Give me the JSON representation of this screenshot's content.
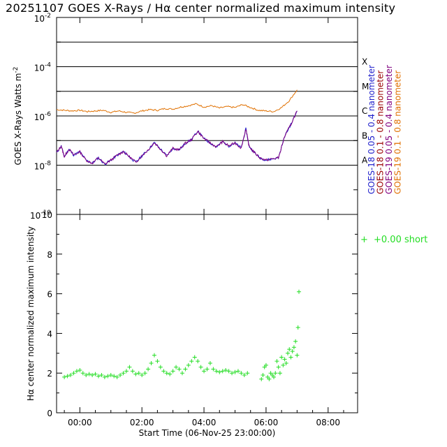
{
  "title": "20251107 GOES X-Rays / Hα center normalized maximum intensity",
  "colors": {
    "goes18_short": "#2222cc",
    "goes18_long": "#990000",
    "goes19_short": "#800080",
    "goes19_long": "#e07000",
    "halpha": "#22dd22"
  },
  "chart_data": [
    {
      "type": "line",
      "title": "GOES X-Rays",
      "ylabel": "GOES X-Rays Watts m",
      "ylabel_sup": "-2",
      "yscale": "log",
      "ylim": [
        1e-10,
        0.01
      ],
      "xlim_hours": [
        -0.75,
        8.95
      ],
      "y_ticks": [
        {
          "base": "10",
          "exp": "-2",
          "value": 0.01
        },
        {
          "base": "10",
          "exp": "-4",
          "value": 0.0001
        },
        {
          "base": "10",
          "exp": "-6",
          "value": 1e-06
        },
        {
          "base": "10",
          "exp": "-8",
          "value": 1e-08
        },
        {
          "base": "10",
          "exp": "-10",
          "value": 1e-10
        }
      ],
      "flare_class_lines": [
        1e-08,
        1e-07,
        1e-06,
        1e-05,
        0.0001,
        0.001
      ],
      "flare_classes": [
        {
          "label": "A",
          "value": 1.8e-08
        },
        {
          "label": "B",
          "value": 1.8e-07
        },
        {
          "label": "C",
          "value": 1.8e-06
        },
        {
          "label": "M",
          "value": 1.8e-05
        },
        {
          "label": "X",
          "value": 0.00018
        }
      ],
      "legend": [
        {
          "label": "GOES-18  0.05 - 0.4 nanometer",
          "color": "#2222cc"
        },
        {
          "label": "GOES-18  0.1 - 0.8 nanometer",
          "color": "#990000"
        },
        {
          "label": "GOES-19  0.05 - 0.4 nanometer",
          "color": "#800080"
        },
        {
          "label": "GOES-19  0.1 - 0.8 nanometer",
          "color": "#e07000"
        }
      ],
      "series": [
        {
          "name": "GOES-19 0.1 - 0.8 nanometer",
          "color": "#e07000",
          "x_hours": [
            -0.75,
            -0.5,
            -0.25,
            0,
            0.25,
            0.5,
            0.75,
            1.0,
            1.25,
            1.5,
            1.75,
            2.0,
            2.25,
            2.5,
            2.75,
            3.0,
            3.25,
            3.5,
            3.75,
            4.0,
            4.25,
            4.5,
            4.75,
            5.0,
            5.25,
            5.5,
            5.75,
            6.0,
            6.25,
            6.5,
            6.75,
            7.0
          ],
          "values": [
            1.8e-06,
            1.7e-06,
            1.6e-06,
            1.7e-06,
            1.5e-06,
            1.6e-06,
            1.7e-06,
            1.4e-06,
            1.6e-06,
            1.4e-06,
            1.3e-06,
            1.6e-06,
            1.8e-06,
            1.7e-06,
            2e-06,
            1.9e-06,
            2.3e-06,
            2.6e-06,
            3.1e-06,
            2.3e-06,
            2.6e-06,
            2.1e-06,
            2.4e-06,
            2.2e-06,
            2.9e-06,
            2.2e-06,
            1.7e-06,
            1.6e-06,
            1.5e-06,
            2.2e-06,
            4.2e-06,
            1.15e-05
          ]
        },
        {
          "name": "GOES-19 0.05 - 0.4 nanometer",
          "color": "#800080",
          "x_hours": [
            -0.75,
            -0.6,
            -0.5,
            -0.35,
            -0.2,
            0,
            0.2,
            0.4,
            0.6,
            0.8,
            1.0,
            1.2,
            1.4,
            1.6,
            1.8,
            2.0,
            2.2,
            2.4,
            2.6,
            2.8,
            3.0,
            3.2,
            3.4,
            3.6,
            3.8,
            4.0,
            4.2,
            4.4,
            4.6,
            4.8,
            5.0,
            5.2,
            5.35,
            5.45,
            5.6,
            5.8,
            6.0,
            6.2,
            6.4,
            6.6,
            6.8,
            7.0
          ],
          "values": [
            3.2e-08,
            6e-08,
            2.2e-08,
            4.5e-08,
            2.6e-08,
            3.5e-08,
            1.6e-08,
            1.2e-08,
            2e-08,
            1.1e-08,
            1.6e-08,
            2.5e-08,
            3.6e-08,
            2.2e-08,
            1.3e-08,
            2.4e-08,
            4.2e-08,
            8.2e-08,
            4.5e-08,
            2.4e-08,
            4.8e-08,
            4.2e-08,
            7.8e-08,
            1.1e-07,
            2.4e-07,
            1.2e-07,
            8e-08,
            5.5e-08,
            9e-08,
            6e-08,
            8e-08,
            5e-08,
            3e-07,
            6e-08,
            3.5e-08,
            2e-08,
            1.6e-08,
            1.8e-08,
            2e-08,
            1.5e-07,
            4.5e-07,
            1.6e-06
          ]
        }
      ]
    },
    {
      "type": "scatter",
      "title": "Hα center normalized maximum intensity",
      "ylabel": "Hα center normalized maximum intensity",
      "ylim": [
        0,
        10
      ],
      "xlim_hours": [
        -0.75,
        8.95
      ],
      "y_ticks": [
        "0",
        "2",
        "4",
        "6",
        "8",
        "10"
      ],
      "x_ticks": [
        {
          "label": "00:00",
          "hour": 0
        },
        {
          "label": "02:00",
          "hour": 2
        },
        {
          "label": "04:00",
          "hour": 4
        },
        {
          "label": "06:00",
          "hour": 6
        },
        {
          "label": "08:00",
          "hour": 8
        }
      ],
      "xlabel": "Start Time (06-Nov-25 23:00:00)",
      "legend": {
        "marker": "+",
        "label": "+0.00 short",
        "color": "#22dd22"
      },
      "series": [
        {
          "name": "Hα",
          "color": "#22dd22",
          "x_hours": [
            -0.5,
            -0.4,
            -0.3,
            -0.2,
            -0.1,
            0,
            0.1,
            0.2,
            0.3,
            0.4,
            0.5,
            0.6,
            0.7,
            0.8,
            0.9,
            1.0,
            1.1,
            1.2,
            1.3,
            1.4,
            1.5,
            1.6,
            1.7,
            1.8,
            1.9,
            2.0,
            2.1,
            2.2,
            2.3,
            2.4,
            2.5,
            2.6,
            2.7,
            2.8,
            2.9,
            3.0,
            3.1,
            3.2,
            3.3,
            3.4,
            3.5,
            3.6,
            3.7,
            3.8,
            3.9,
            4.0,
            4.1,
            4.2,
            4.3,
            4.4,
            4.5,
            4.6,
            4.7,
            4.8,
            4.9,
            5.0,
            5.1,
            5.2,
            5.3,
            5.4,
            5.85,
            5.9,
            5.95,
            6.0,
            6.05,
            6.1,
            6.15,
            6.2,
            6.25,
            6.3,
            6.35,
            6.4,
            6.45,
            6.5,
            6.55,
            6.6,
            6.65,
            6.7,
            6.75,
            6.8,
            6.85,
            6.9,
            6.95,
            7.0,
            7.03,
            7.06
          ],
          "values": [
            1.8,
            1.85,
            1.9,
            2.0,
            2.1,
            2.15,
            2.0,
            1.9,
            1.95,
            1.9,
            1.95,
            1.85,
            1.9,
            1.8,
            1.85,
            1.9,
            1.85,
            1.8,
            1.9,
            2.0,
            2.1,
            2.3,
            2.1,
            1.95,
            2.0,
            1.9,
            2.0,
            2.2,
            2.5,
            2.9,
            2.6,
            2.3,
            2.1,
            2.0,
            1.95,
            2.1,
            2.3,
            2.2,
            2.0,
            2.2,
            2.4,
            2.6,
            2.8,
            2.6,
            2.3,
            2.1,
            2.2,
            2.5,
            2.2,
            2.1,
            2.05,
            2.1,
            2.15,
            2.1,
            2.0,
            2.05,
            2.1,
            2.0,
            1.9,
            2.0,
            1.7,
            1.9,
            2.3,
            2.4,
            1.8,
            1.7,
            2.0,
            1.9,
            1.8,
            2.0,
            2.6,
            2.3,
            2.0,
            2.8,
            2.4,
            2.7,
            2.5,
            3.0,
            3.2,
            2.8,
            3.1,
            3.3,
            3.6,
            2.9,
            4.3,
            6.1
          ]
        }
      ]
    }
  ]
}
